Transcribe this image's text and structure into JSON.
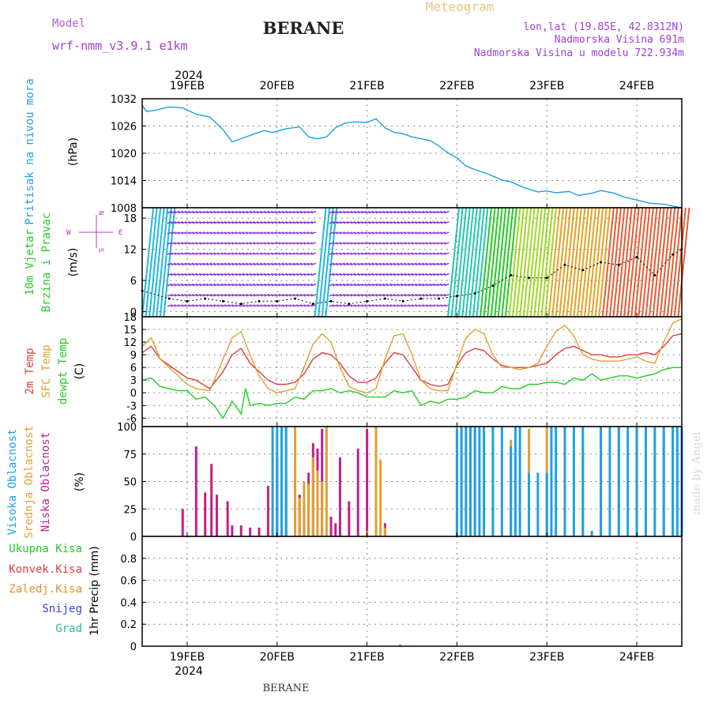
{
  "header": {
    "model_label": "Model",
    "model_name": "wrf-nmm_v3.9.1  e1km",
    "station": "BERANE",
    "product": "Meteogram",
    "coords": "lon,lat (19.85E, 42.8312N)",
    "elevation": "Nadmorska Visina 691m",
    "model_elevation": "Nadmorska Visina u modelu 722.934m",
    "footer_station": "BERANE",
    "credit": "made by Angel"
  },
  "time_axis": {
    "year": "2024",
    "days": [
      "19FEB",
      "20FEB",
      "21FEB",
      "22FEB",
      "23FEB",
      "24FEB"
    ],
    "range_days": [
      -0.5,
      5.5
    ]
  },
  "colors": {
    "pressure": "#1ea0e6",
    "wind_green": "#22cc22",
    "temp_2m": "#e23c3c",
    "temp_sfc": "#e0a030",
    "temp_dew": "#22cc22",
    "cloud_high": "#1ea0e6",
    "cloud_mid": "#e0a030",
    "cloud_low": "#c0208a",
    "wind_purple": "#8a2be2",
    "compass": "#a040c0"
  },
  "chart_data": [
    {
      "type": "line",
      "panel": "pressure",
      "labels": [
        "Pritisak na nivou mora"
      ],
      "unit": "(hPa)",
      "ylim": [
        1008,
        1032
      ],
      "yticks": [
        1008,
        1014,
        1020,
        1026,
        1032
      ],
      "grid": true,
      "series": [
        {
          "color_key": "pressure",
          "x": [
            -0.5,
            -0.45,
            -0.35,
            -0.2,
            -0.05,
            0.1,
            0.25,
            0.4,
            0.5,
            0.6,
            0.75,
            0.85,
            0.95,
            1.1,
            1.25,
            1.35,
            1.45,
            1.55,
            1.65,
            1.75,
            1.85,
            2.0,
            2.1,
            2.2,
            2.3,
            2.4,
            2.5,
            2.6,
            2.7,
            2.8,
            2.9,
            3.0,
            3.1,
            3.2,
            3.35,
            3.5,
            3.6,
            3.75,
            3.9,
            4.0,
            4.1,
            4.25,
            4.35,
            4.5,
            4.6,
            4.75,
            4.85,
            5.0,
            5.15,
            5.3,
            5.5
          ],
          "y": [
            1030.5,
            1029.2,
            1029.5,
            1030.2,
            1030.0,
            1028.6,
            1028.0,
            1025.2,
            1022.5,
            1023.2,
            1024.3,
            1025.0,
            1024.6,
            1025.4,
            1025.8,
            1023.6,
            1023.2,
            1023.6,
            1025.6,
            1026.6,
            1026.9,
            1026.8,
            1027.6,
            1025.6,
            1024.6,
            1024.3,
            1023.6,
            1023.2,
            1022.8,
            1021.6,
            1020.1,
            1019.0,
            1017.2,
            1016.4,
            1015.4,
            1014.1,
            1013.7,
            1012.4,
            1011.5,
            1011.7,
            1011.3,
            1011.6,
            1010.7,
            1011.2,
            1011.8,
            1011.2,
            1010.4,
            1009.7,
            1009.0,
            1008.8,
            1008.0
          ]
        }
      ]
    },
    {
      "type": "scatter",
      "panel": "wind",
      "labels": [
        "10m Vjetar",
        "Brzina i Pravac"
      ],
      "unit": "(m/s)",
      "ylim": [
        -1,
        20
      ],
      "yticks": [
        0,
        6,
        12,
        18
      ],
      "grid": true,
      "compass": {
        "top": "N",
        "left": "W",
        "right": "E",
        "bottom": "S"
      },
      "series": [
        {
          "name_key": "speed",
          "color": "#000000",
          "x": [
            -0.5,
            -0.2,
            0.0,
            0.2,
            0.4,
            0.6,
            0.8,
            1.0,
            1.2,
            1.4,
            1.6,
            1.8,
            2.0,
            2.2,
            2.4,
            2.6,
            2.8,
            3.0,
            3.2,
            3.4,
            3.6,
            3.8,
            4.0,
            4.2,
            4.4,
            4.6,
            4.8,
            5.0,
            5.2,
            5.4,
            5.5
          ],
          "y": [
            4.0,
            2.5,
            2.0,
            2.5,
            2.0,
            1.5,
            2.0,
            2.0,
            2.5,
            1.5,
            2.0,
            1.5,
            2.0,
            2.5,
            2.0,
            2.5,
            2.5,
            3.0,
            3.5,
            5.0,
            7.0,
            6.5,
            6.5,
            9.0,
            8.0,
            9.5,
            9.0,
            10.5,
            7.0,
            11.0,
            12.0
          ]
        }
      ]
    },
    {
      "type": "line",
      "panel": "temperature",
      "labels": [
        "2m Temp",
        "SFC Temp",
        "dewpt Temp"
      ],
      "unit": "(C)",
      "ylim": [
        -8,
        18
      ],
      "yticks": [
        -6,
        -3,
        0,
        3,
        6,
        9,
        12,
        15,
        18
      ],
      "grid": true,
      "series": [
        {
          "color_key": "temp_2m",
          "x": [
            -0.5,
            -0.4,
            -0.3,
            -0.1,
            0.0,
            0.1,
            0.25,
            0.4,
            0.5,
            0.6,
            0.7,
            0.8,
            0.9,
            1.0,
            1.1,
            1.2,
            1.3,
            1.4,
            1.5,
            1.6,
            1.7,
            1.8,
            1.9,
            2.0,
            2.1,
            2.2,
            2.3,
            2.4,
            2.5,
            2.6,
            2.7,
            2.8,
            2.9,
            3.0,
            3.1,
            3.2,
            3.3,
            3.4,
            3.5,
            3.6,
            3.7,
            3.8,
            3.9,
            4.0,
            4.1,
            4.2,
            4.3,
            4.4,
            4.5,
            4.6,
            4.7,
            4.8,
            4.9,
            5.0,
            5.1,
            5.2,
            5.3,
            5.4,
            5.5
          ],
          "y": [
            9.5,
            11.0,
            8.0,
            5.0,
            3.5,
            3.0,
            1.0,
            5.0,
            9.0,
            10.5,
            7.0,
            5.0,
            3.0,
            2.0,
            2.0,
            2.5,
            4.5,
            8.0,
            9.5,
            9.0,
            7.0,
            4.0,
            2.5,
            2.5,
            3.5,
            7.0,
            9.5,
            9.0,
            6.0,
            3.0,
            2.0,
            1.5,
            2.0,
            6.5,
            9.5,
            10.5,
            10.0,
            8.0,
            6.5,
            6.0,
            6.0,
            6.0,
            6.5,
            7.0,
            9.0,
            10.5,
            11.0,
            10.0,
            9.0,
            9.0,
            8.5,
            8.5,
            9.0,
            9.0,
            9.5,
            9.0,
            11.0,
            13.5,
            14.0
          ]
        },
        {
          "color_key": "temp_sfc",
          "x": [
            -0.5,
            -0.4,
            -0.3,
            -0.1,
            0.0,
            0.1,
            0.25,
            0.4,
            0.5,
            0.6,
            0.7,
            0.8,
            0.9,
            1.0,
            1.1,
            1.2,
            1.3,
            1.4,
            1.5,
            1.6,
            1.7,
            1.8,
            1.9,
            2.0,
            2.1,
            2.2,
            2.3,
            2.4,
            2.5,
            2.6,
            2.7,
            2.8,
            2.9,
            3.0,
            3.1,
            3.2,
            3.3,
            3.4,
            3.5,
            3.6,
            3.7,
            3.8,
            3.9,
            4.0,
            4.1,
            4.2,
            4.3,
            4.4,
            4.5,
            4.6,
            4.7,
            4.8,
            4.9,
            5.0,
            5.1,
            5.2,
            5.3,
            5.4,
            5.5
          ],
          "y": [
            11.0,
            13.0,
            8.0,
            4.0,
            2.0,
            1.0,
            0.5,
            8.0,
            13.0,
            14.5,
            9.0,
            4.0,
            1.0,
            0.0,
            0.5,
            1.0,
            6.0,
            11.5,
            14.0,
            12.0,
            6.0,
            1.5,
            0.5,
            0.0,
            1.0,
            8.0,
            13.5,
            14.0,
            9.0,
            3.0,
            1.0,
            0.5,
            0.5,
            7.0,
            13.0,
            15.0,
            14.0,
            9.0,
            6.0,
            6.0,
            5.5,
            6.0,
            7.0,
            11.0,
            14.5,
            16.0,
            13.5,
            9.0,
            8.0,
            7.5,
            7.5,
            7.5,
            8.0,
            8.5,
            7.5,
            7.0,
            12.0,
            16.5,
            17.5
          ]
        },
        {
          "color_key": "temp_dew",
          "x": [
            -0.5,
            -0.4,
            -0.3,
            -0.2,
            -0.1,
            0.0,
            0.1,
            0.2,
            0.3,
            0.4,
            0.5,
            0.6,
            0.65,
            0.7,
            0.8,
            0.9,
            1.0,
            1.1,
            1.2,
            1.3,
            1.4,
            1.5,
            1.6,
            1.7,
            1.8,
            1.9,
            2.0,
            2.1,
            2.2,
            2.3,
            2.4,
            2.5,
            2.6,
            2.7,
            2.8,
            2.9,
            3.0,
            3.1,
            3.2,
            3.3,
            3.4,
            3.5,
            3.6,
            3.7,
            3.8,
            3.9,
            4.0,
            4.1,
            4.2,
            4.3,
            4.4,
            4.5,
            4.6,
            4.7,
            4.8,
            4.9,
            5.0,
            5.1,
            5.2,
            5.3,
            5.4,
            5.5
          ],
          "y": [
            3.0,
            3.5,
            1.5,
            1.0,
            0.5,
            0.5,
            -1.5,
            -1.0,
            -3.0,
            -6.0,
            -2.0,
            -5.0,
            1.0,
            -3.0,
            -2.5,
            -3.0,
            -2.5,
            -2.5,
            -1.0,
            -1.5,
            0.5,
            0.5,
            1.0,
            0.0,
            0.5,
            0.0,
            -1.0,
            -1.0,
            -1.0,
            0.5,
            0.0,
            0.5,
            -3.0,
            -2.0,
            -2.5,
            -1.5,
            -1.5,
            -1.0,
            0.5,
            0.0,
            0.0,
            1.5,
            1.0,
            1.0,
            2.0,
            2.0,
            2.5,
            2.5,
            2.0,
            3.5,
            3.0,
            4.5,
            3.0,
            3.5,
            4.0,
            4.0,
            3.5,
            4.0,
            4.5,
            5.5,
            6.0,
            6.0
          ]
        }
      ]
    },
    {
      "type": "bar",
      "panel": "clouds",
      "labels": [
        "Visoka Oblacnost",
        "Srednja Oblacnost",
        "Niska Oblacnost"
      ],
      "unit": "(%)",
      "ylim": [
        0,
        100
      ],
      "yticks": [
        0,
        25,
        50,
        75,
        100
      ],
      "grid": true,
      "series": [
        {
          "color_key": "cloud_low",
          "x": [
            -0.05,
            0.1,
            0.2,
            0.27,
            0.33,
            0.45,
            0.5,
            0.6,
            0.7,
            0.8,
            0.9,
            1.0,
            1.1,
            1.2,
            1.25,
            1.3,
            1.35,
            1.4,
            1.45,
            1.5,
            1.6,
            1.65,
            1.7,
            1.8,
            1.9,
            2.0,
            2.1,
            2.2
          ],
          "y": [
            25,
            82,
            40,
            66,
            38,
            32,
            10,
            10,
            8,
            8,
            46,
            72,
            52,
            66,
            38,
            28,
            58,
            85,
            80,
            98,
            18,
            12,
            72,
            32,
            80,
            98,
            10,
            12
          ]
        },
        {
          "color_key": "cloud_mid",
          "x": [
            1.1,
            1.2,
            1.25,
            1.3,
            1.35,
            1.4,
            1.45,
            1.5,
            1.55,
            2.0,
            2.1,
            2.15,
            2.2,
            3.0,
            3.2,
            3.4,
            3.6,
            3.8,
            4.0,
            4.2,
            4.4,
            4.6,
            4.8,
            5.0,
            5.3
          ],
          "y": [
            100,
            100,
            35,
            50,
            48,
            72,
            60,
            50,
            100,
            5,
            100,
            70,
            8,
            100,
            98,
            90,
            88,
            98,
            100,
            98,
            85,
            100,
            100,
            100,
            100
          ]
        },
        {
          "color_key": "cloud_high",
          "x": [
            0.95,
            1.0,
            1.05,
            1.1,
            3.0,
            3.05,
            3.1,
            3.15,
            3.2,
            3.25,
            3.3,
            3.4,
            3.5,
            3.6,
            3.65,
            3.7,
            3.8,
            3.9,
            4.0,
            4.05,
            4.1,
            4.2,
            4.3,
            4.4,
            4.5,
            4.6,
            4.7,
            4.8,
            4.9,
            5.0,
            5.1,
            5.2,
            5.3,
            5.4,
            5.45,
            5.5
          ],
          "y": [
            100,
            100,
            100,
            100,
            98,
            100,
            100,
            100,
            100,
            100,
            100,
            100,
            100,
            82,
            100,
            100,
            58,
            58,
            58,
            100,
            100,
            100,
            100,
            100,
            5,
            100,
            100,
            100,
            100,
            100,
            100,
            100,
            100,
            100,
            100,
            100
          ]
        }
      ]
    },
    {
      "type": "bar",
      "panel": "precip",
      "labels": [
        "Ukupna Kisa",
        "Konvek.Kisa",
        "Zaledj.Kisa",
        "Snijeg",
        "Grad"
      ],
      "label_colors": [
        "#22cc22",
        "#e23c3c",
        "#f08a30",
        "#3c3ce6",
        "#22c0a8"
      ],
      "ylabel": "1hr Precip (mm)",
      "ylim": [
        0,
        1
      ],
      "yticks": [
        0,
        0.2,
        0.4,
        0.6,
        0.8
      ],
      "grid": true,
      "series": [
        {
          "color_key": "wind_green",
          "x": [
            2.37
          ],
          "y": [
            0.015
          ]
        }
      ]
    }
  ]
}
